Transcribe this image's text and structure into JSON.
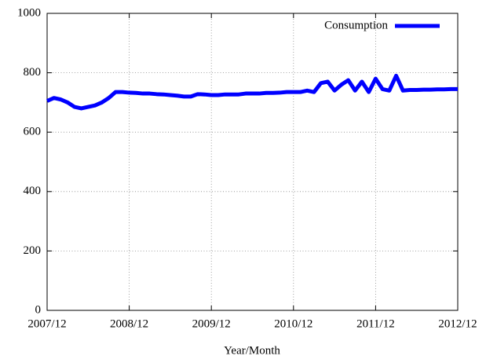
{
  "chart_data": {
    "type": "line",
    "x_label": "Year/Month",
    "x": [
      "2007/12",
      "2008/01",
      "2008/02",
      "2008/03",
      "2008/04",
      "2008/05",
      "2008/06",
      "2008/07",
      "2008/08",
      "2008/09",
      "2008/10",
      "2008/11",
      "2008/12",
      "2009/01",
      "2009/02",
      "2009/03",
      "2009/04",
      "2009/05",
      "2009/06",
      "2009/07",
      "2009/08",
      "2009/09",
      "2009/10",
      "2009/11",
      "2009/12",
      "2010/01",
      "2010/02",
      "2010/03",
      "2010/04",
      "2010/05",
      "2010/06",
      "2010/07",
      "2010/08",
      "2010/09",
      "2010/10",
      "2010/11",
      "2010/12",
      "2011/01",
      "2011/02",
      "2011/03",
      "2011/04",
      "2011/05",
      "2011/06",
      "2011/07",
      "2011/08",
      "2011/09",
      "2011/10",
      "2011/11",
      "2011/12",
      "2012/01",
      "2012/02",
      "2012/03",
      "2012/04",
      "2012/05",
      "2012/06",
      "2012/07",
      "2012/08",
      "2012/09",
      "2012/10",
      "2012/11",
      "2012/12"
    ],
    "series": [
      {
        "name": "Consumption",
        "color": "#0000ff",
        "values": [
          705,
          715,
          710,
          700,
          685,
          680,
          685,
          690,
          700,
          715,
          735,
          735,
          733,
          732,
          730,
          730,
          728,
          727,
          725,
          723,
          720,
          720,
          728,
          727,
          725,
          725,
          727,
          727,
          727,
          730,
          730,
          730,
          732,
          732,
          733,
          735,
          735,
          735,
          740,
          735,
          765,
          770,
          740,
          760,
          775,
          740,
          770,
          735,
          780,
          745,
          740,
          790,
          740,
          742,
          742,
          743,
          743,
          744,
          744,
          745,
          745
        ]
      }
    ],
    "xticks": [
      "2007/12",
      "2008/12",
      "2009/12",
      "2010/12",
      "2011/12",
      "2012/12"
    ],
    "ylim": [
      0,
      1000
    ],
    "yticks": [
      0,
      200,
      400,
      600,
      800,
      1000
    ],
    "grid": true,
    "legend": "top-right"
  }
}
